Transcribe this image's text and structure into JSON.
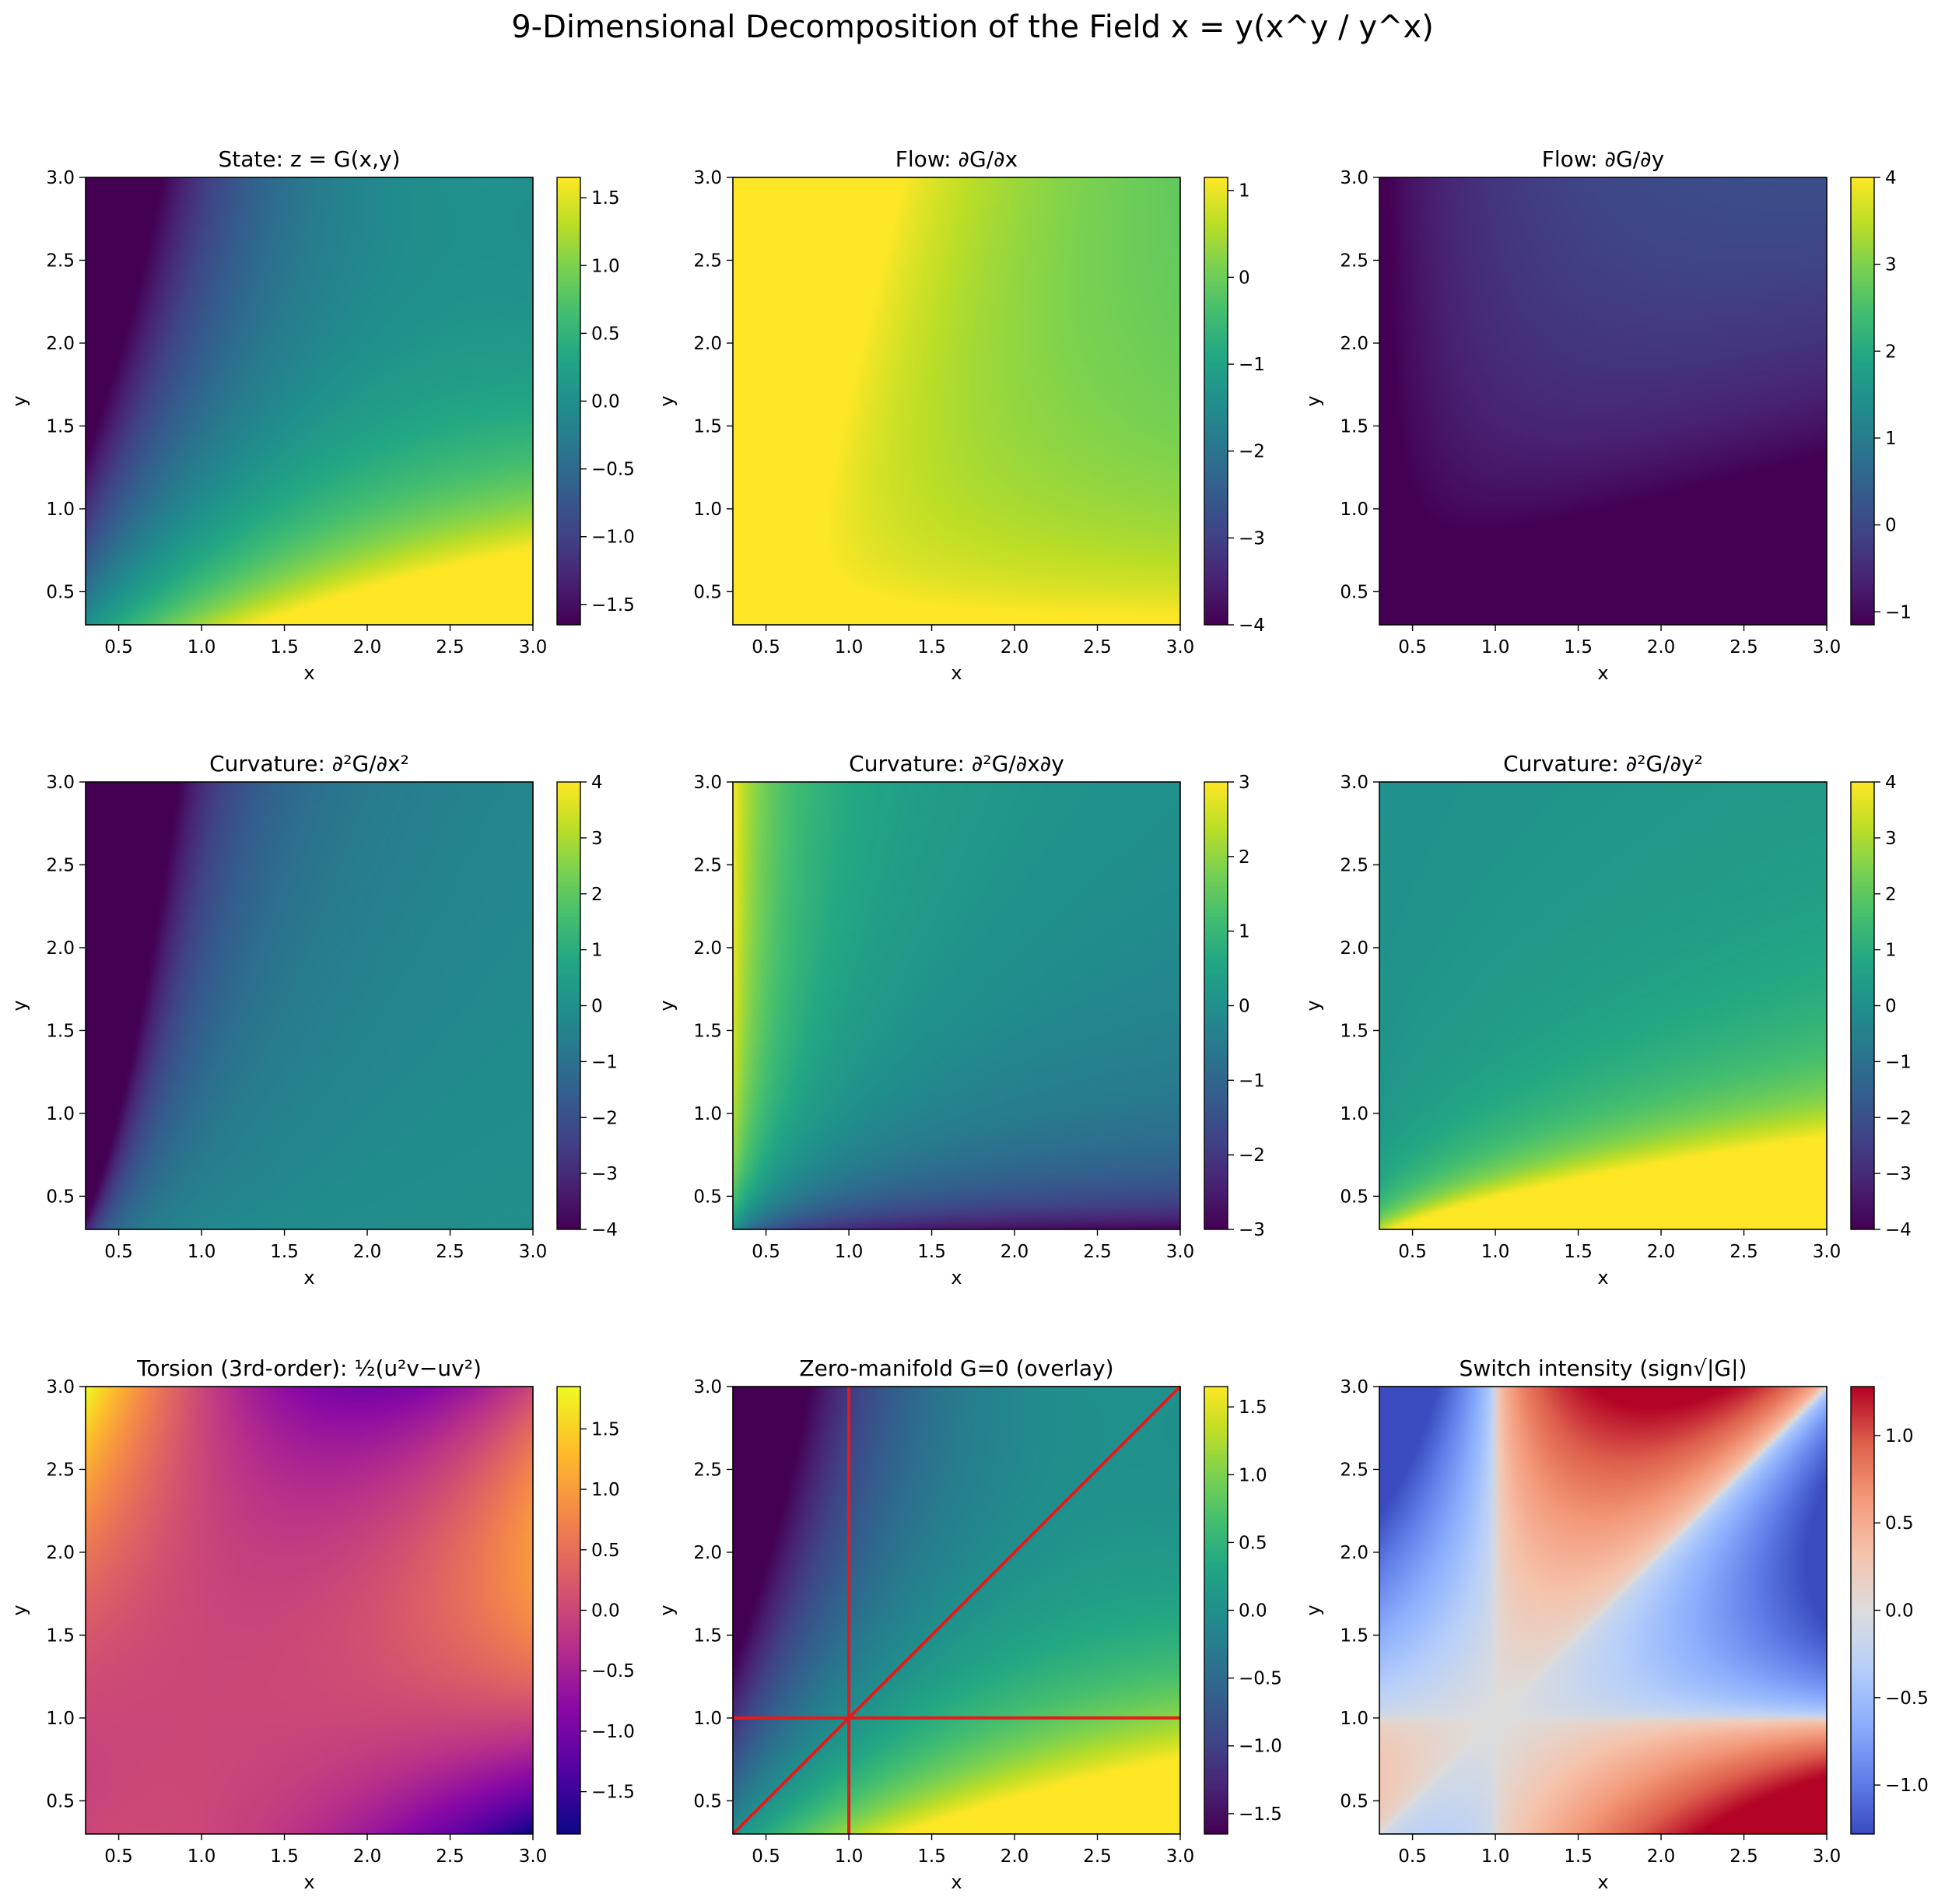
{
  "figure": {
    "title": "9-Dimensional Decomposition of the Field x = y(x^y / y^x)"
  },
  "chart_data": [
    {
      "type": "heatmap",
      "title": "State: z = G(x,y)",
      "xlabel": "x",
      "ylabel": "y",
      "xlim": [
        0.3,
        3.0
      ],
      "ylim": [
        0.3,
        3.0
      ],
      "xticks": [
        "0.5",
        "1.0",
        "1.5",
        "2.0",
        "2.5",
        "3.0"
      ],
      "yticks": [
        "0.5",
        "1.0",
        "1.5",
        "2.0",
        "2.5",
        "3.0"
      ],
      "colormap": "viridis",
      "clim": [
        -1.65,
        1.65
      ],
      "cbar_ticks": [
        "1.5",
        "1.0",
        "0.5",
        "0.0",
        "−0.5",
        "−1.0",
        "−1.5"
      ],
      "cbar_tick_values": [
        1.5,
        1.0,
        0.5,
        0.0,
        -0.5,
        -1.0,
        -1.5
      ],
      "field": "G",
      "grid": false
    },
    {
      "type": "heatmap",
      "title": "Flow: ∂G/∂x",
      "xlabel": "x",
      "ylabel": "y",
      "xlim": [
        0.3,
        3.0
      ],
      "ylim": [
        0.3,
        3.0
      ],
      "xticks": [
        "0.5",
        "1.0",
        "1.5",
        "2.0",
        "2.5",
        "3.0"
      ],
      "yticks": [
        "0.5",
        "1.0",
        "1.5",
        "2.0",
        "2.5",
        "3.0"
      ],
      "colormap": "viridis",
      "clim": [
        -4,
        1.15
      ],
      "cbar_ticks": [
        "1",
        "0",
        "−1",
        "−2",
        "−3",
        "−4"
      ],
      "cbar_tick_values": [
        1,
        0,
        -1,
        -2,
        -3,
        -4
      ],
      "field": "Gx",
      "grid": false
    },
    {
      "type": "heatmap",
      "title": "Flow: ∂G/∂y",
      "xlabel": "x",
      "ylabel": "y",
      "xlim": [
        0.3,
        3.0
      ],
      "ylim": [
        0.3,
        3.0
      ],
      "xticks": [
        "0.5",
        "1.0",
        "1.5",
        "2.0",
        "2.5",
        "3.0"
      ],
      "yticks": [
        "0.5",
        "1.0",
        "1.5",
        "2.0",
        "2.5",
        "3.0"
      ],
      "colormap": "viridis",
      "clim": [
        -1.15,
        4
      ],
      "cbar_ticks": [
        "4",
        "3",
        "2",
        "1",
        "0",
        "−1"
      ],
      "cbar_tick_values": [
        4,
        3,
        2,
        1,
        0,
        -1
      ],
      "field": "Gy",
      "grid": false
    },
    {
      "type": "heatmap",
      "title": "Curvature: ∂²G/∂x²",
      "xlabel": "x",
      "ylabel": "y",
      "xlim": [
        0.3,
        3.0
      ],
      "ylim": [
        0.3,
        3.0
      ],
      "xticks": [
        "0.5",
        "1.0",
        "1.5",
        "2.0",
        "2.5",
        "3.0"
      ],
      "yticks": [
        "0.5",
        "1.0",
        "1.5",
        "2.0",
        "2.5",
        "3.0"
      ],
      "colormap": "viridis",
      "clim": [
        -4,
        4
      ],
      "cbar_ticks": [
        "4",
        "3",
        "2",
        "1",
        "0",
        "−1",
        "−2",
        "−3",
        "−4"
      ],
      "cbar_tick_values": [
        4,
        3,
        2,
        1,
        0,
        -1,
        -2,
        -3,
        -4
      ],
      "field": "Gxx",
      "grid": false
    },
    {
      "type": "heatmap",
      "title": "Curvature: ∂²G/∂x∂y",
      "xlabel": "x",
      "ylabel": "y",
      "xlim": [
        0.3,
        3.0
      ],
      "ylim": [
        0.3,
        3.0
      ],
      "xticks": [
        "0.5",
        "1.0",
        "1.5",
        "2.0",
        "2.5",
        "3.0"
      ],
      "yticks": [
        "0.5",
        "1.0",
        "1.5",
        "2.0",
        "2.5",
        "3.0"
      ],
      "colormap": "viridis",
      "clim": [
        -3,
        3
      ],
      "cbar_ticks": [
        "3",
        "2",
        "1",
        "0",
        "−1",
        "−2",
        "−3"
      ],
      "cbar_tick_values": [
        3,
        2,
        1,
        0,
        -1,
        -2,
        -3
      ],
      "field": "Gxy",
      "grid": false
    },
    {
      "type": "heatmap",
      "title": "Curvature: ∂²G/∂y²",
      "xlabel": "x",
      "ylabel": "y",
      "xlim": [
        0.3,
        3.0
      ],
      "ylim": [
        0.3,
        3.0
      ],
      "xticks": [
        "0.5",
        "1.0",
        "1.5",
        "2.0",
        "2.5",
        "3.0"
      ],
      "yticks": [
        "0.5",
        "1.0",
        "1.5",
        "2.0",
        "2.5",
        "3.0"
      ],
      "colormap": "viridis",
      "clim": [
        -4,
        4
      ],
      "cbar_ticks": [
        "4",
        "3",
        "2",
        "1",
        "0",
        "−1",
        "−2",
        "−3",
        "−4"
      ],
      "cbar_tick_values": [
        4,
        3,
        2,
        1,
        0,
        -1,
        -2,
        -3,
        -4
      ],
      "field": "Gyy",
      "grid": false
    },
    {
      "type": "heatmap",
      "title": "Torsion (3rd-order): ½(u²v−uv²)",
      "xlabel": "x",
      "ylabel": "y",
      "xlim": [
        0.3,
        3.0
      ],
      "ylim": [
        0.3,
        3.0
      ],
      "xticks": [
        "0.5",
        "1.0",
        "1.5",
        "2.0",
        "2.5",
        "3.0"
      ],
      "yticks": [
        "0.5",
        "1.0",
        "1.5",
        "2.0",
        "2.5",
        "3.0"
      ],
      "colormap": "plasma",
      "clim": [
        -1.85,
        1.85
      ],
      "cbar_ticks": [
        "1.5",
        "1.0",
        "0.5",
        "0.0",
        "−0.5",
        "−1.0",
        "−1.5"
      ],
      "cbar_tick_values": [
        1.5,
        1.0,
        0.5,
        0.0,
        -0.5,
        -1.0,
        -1.5
      ],
      "field": "T",
      "grid": false
    },
    {
      "type": "heatmap",
      "title": "Zero-manifold G=0 (overlay)",
      "xlabel": "x",
      "ylabel": "y",
      "xlim": [
        0.3,
        3.0
      ],
      "ylim": [
        0.3,
        3.0
      ],
      "xticks": [
        "0.5",
        "1.0",
        "1.5",
        "2.0",
        "2.5",
        "3.0"
      ],
      "yticks": [
        "0.5",
        "1.0",
        "1.5",
        "2.0",
        "2.5",
        "3.0"
      ],
      "colormap": "viridis",
      "clim": [
        -1.65,
        1.65
      ],
      "cbar_ticks": [
        "1.5",
        "1.0",
        "0.5",
        "0.0",
        "−0.5",
        "−1.0",
        "−1.5"
      ],
      "cbar_tick_values": [
        1.5,
        1.0,
        0.5,
        0.0,
        -0.5,
        -1.0,
        -1.5
      ],
      "field": "G",
      "grid": false,
      "overlay_lines": [
        {
          "points": [
            [
              1.0,
              0.3
            ],
            [
              1.0,
              3.0
            ]
          ],
          "color": "#e41a1c"
        },
        {
          "points": [
            [
              0.3,
              1.0
            ],
            [
              3.0,
              1.0
            ]
          ],
          "color": "#e41a1c"
        },
        {
          "points": [
            [
              0.3,
              0.3
            ],
            [
              3.0,
              3.0
            ]
          ],
          "color": "#e41a1c"
        }
      ]
    },
    {
      "type": "heatmap",
      "title": "Switch intensity (sign√|G|)",
      "xlabel": "x",
      "ylabel": "y",
      "xlim": [
        0.3,
        3.0
      ],
      "ylim": [
        0.3,
        3.0
      ],
      "xticks": [
        "0.5",
        "1.0",
        "1.5",
        "2.0",
        "2.5",
        "3.0"
      ],
      "yticks": [
        "0.5",
        "1.0",
        "1.5",
        "2.0",
        "2.5",
        "3.0"
      ],
      "colormap": "coolwarm",
      "clim": [
        -1.28,
        1.28
      ],
      "cbar_ticks": [
        "1.0",
        "0.5",
        "0.0",
        "−0.5",
        "−1.0"
      ],
      "cbar_tick_values": [
        1.0,
        0.5,
        0.0,
        -0.5,
        -1.0
      ],
      "field": "S",
      "grid": false
    }
  ]
}
